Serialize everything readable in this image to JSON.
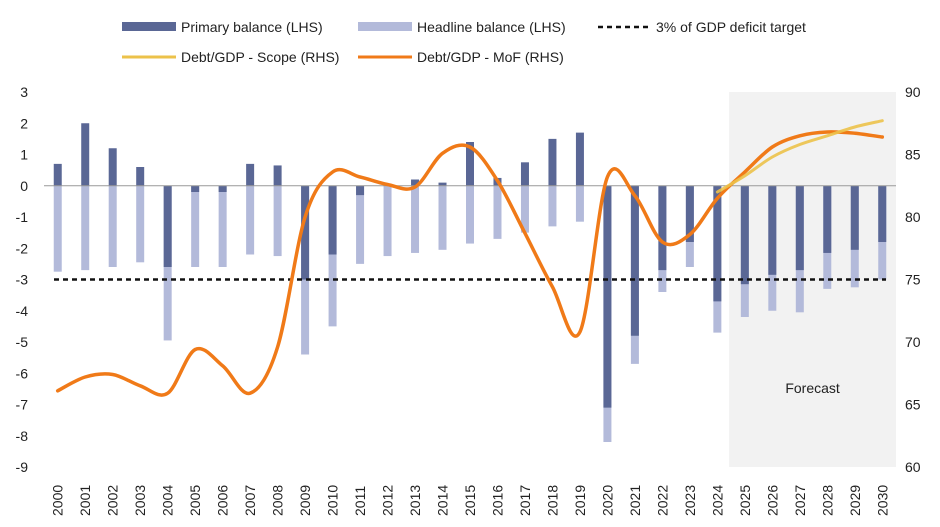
{
  "chart_data": {
    "type": "bar",
    "title": "",
    "categories": [
      "2000",
      "2001",
      "2002",
      "2003",
      "2004",
      "2005",
      "2006",
      "2007",
      "2008",
      "2009",
      "2010",
      "2011",
      "2012",
      "2013",
      "2014",
      "2015",
      "2016",
      "2017",
      "2018",
      "2019",
      "2020",
      "2021",
      "2022",
      "2023",
      "2024",
      "2025",
      "2026",
      "2027",
      "2028",
      "2029",
      "2030"
    ],
    "y_left": {
      "min": -9,
      "max": 3,
      "ticks": [
        3,
        2,
        1,
        0,
        -1,
        -2,
        -3,
        -4,
        -5,
        -6,
        -7,
        -8,
        -9
      ]
    },
    "y_right": {
      "min": 60,
      "max": 90,
      "ticks": [
        90,
        85,
        80,
        75,
        70,
        65,
        60
      ]
    },
    "series": [
      {
        "name": "Primary balance (LHS)",
        "axis": "left",
        "kind": "bar",
        "color": "#5a6795",
        "values": [
          0.7,
          2.0,
          1.2,
          0.6,
          -2.6,
          -0.2,
          -0.2,
          0.7,
          0.65,
          -3.0,
          -2.2,
          -0.3,
          0.05,
          0.2,
          0.1,
          1.4,
          0.25,
          0.75,
          1.5,
          1.7,
          -7.1,
          -4.8,
          -2.7,
          -1.8,
          -3.7,
          -3.15,
          -2.85,
          -2.7,
          -2.15,
          -2.05,
          -1.8
        ]
      },
      {
        "name": "Headline balance (LHS)",
        "axis": "left",
        "kind": "bar",
        "color": "#b3bada",
        "values": [
          -2.75,
          -2.7,
          -2.6,
          -2.45,
          -4.95,
          -2.6,
          -2.6,
          -2.2,
          -2.25,
          -5.4,
          -4.5,
          -2.5,
          -2.25,
          -2.15,
          -2.05,
          -1.85,
          -1.7,
          -1.5,
          -1.3,
          -1.15,
          -8.2,
          -5.7,
          -3.4,
          -2.6,
          -4.7,
          -4.2,
          -4.0,
          -4.05,
          -3.3,
          -3.25,
          -3.0
        ]
      },
      {
        "name": "3% of GDP deficit target",
        "axis": "left",
        "kind": "dashed-line",
        "color": "#111111",
        "value": -3
      },
      {
        "name": "Debt/GDP - Scope (RHS)",
        "axis": "right",
        "kind": "line",
        "color": "#ecc24a",
        "x": [
          "2024",
          "2025",
          "2026",
          "2027",
          "2028",
          "2029",
          "2030"
        ],
        "values": [
          82.0,
          83.3,
          84.8,
          85.8,
          86.5,
          87.2,
          87.7
        ]
      },
      {
        "name": "Debt/GDP - MoF (RHS)",
        "axis": "right",
        "kind": "line",
        "color": "#f07a18",
        "values": [
          66.1,
          67.2,
          67.4,
          66.5,
          65.9,
          69.4,
          68.1,
          65.9,
          69.6,
          80.0,
          83.6,
          83.2,
          82.6,
          82.4,
          85.1,
          85.6,
          82.9,
          78.7,
          74.4,
          70.8,
          83.2,
          81.7,
          78.0,
          78.6,
          81.5,
          83.6,
          85.6,
          86.5,
          86.8,
          86.7,
          86.4
        ]
      }
    ],
    "forecast_band": {
      "from": "2025",
      "to": "2030",
      "label": "Forecast",
      "color": "#f2f2f2"
    },
    "legend_position": "top",
    "grid": false
  },
  "legend": {
    "primary": "Primary balance (LHS)",
    "headline": "Headline balance (LHS)",
    "target": "3% of GDP deficit target",
    "scope": "Debt/GDP - Scope (RHS)",
    "mof": "Debt/GDP - MoF (RHS)"
  }
}
